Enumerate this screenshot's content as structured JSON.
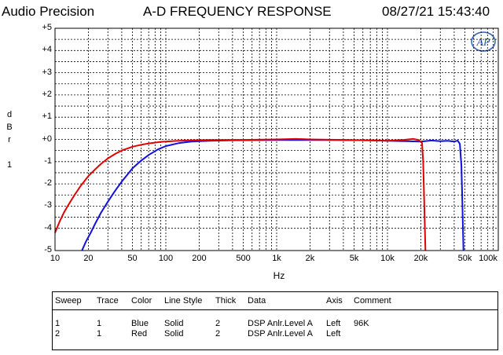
{
  "header": {
    "brand": "Audio Precision",
    "title": "A-D FREQUENCY RESPONSE",
    "timestamp": "08/27/21 15:43:40"
  },
  "logo": {
    "icon": "ap-logo-icon",
    "text": "AP"
  },
  "chart_data": {
    "type": "line",
    "title": "A-D FREQUENCY RESPONSE",
    "xlabel": "Hz",
    "ylabel": [
      "d",
      "B",
      "r",
      "",
      "1"
    ],
    "xscale": "log",
    "xlim": [
      10,
      100000
    ],
    "ylim": [
      -5,
      5
    ],
    "grid": true,
    "xticks": [
      {
        "v": 10,
        "label": "10"
      },
      {
        "v": 20,
        "label": "20"
      },
      {
        "v": 50,
        "label": "50"
      },
      {
        "v": 100,
        "label": "100"
      },
      {
        "v": 200,
        "label": "200"
      },
      {
        "v": 500,
        "label": "500"
      },
      {
        "v": 1000,
        "label": "1k"
      },
      {
        "v": 2000,
        "label": "2k"
      },
      {
        "v": 5000,
        "label": "5k"
      },
      {
        "v": 10000,
        "label": "10k"
      },
      {
        "v": 20000,
        "label": "20k"
      },
      {
        "v": 50000,
        "label": "50k"
      },
      {
        "v": 100000,
        "label": "100k"
      }
    ],
    "yticks": [
      {
        "v": 5,
        "label": "+5"
      },
      {
        "v": 4,
        "label": "+4"
      },
      {
        "v": 3,
        "label": "+3"
      },
      {
        "v": 2,
        "label": "+2"
      },
      {
        "v": 1,
        "label": "+1"
      },
      {
        "v": 0,
        "label": "+0"
      },
      {
        "v": -1,
        "label": "-1"
      },
      {
        "v": -2,
        "label": "-2"
      },
      {
        "v": -3,
        "label": "-3"
      },
      {
        "v": -4,
        "label": "-4"
      },
      {
        "v": -5,
        "label": "-5"
      }
    ],
    "series": [
      {
        "color": "#1010e0",
        "points": [
          [
            17.5,
            -5
          ],
          [
            19,
            -4.6
          ],
          [
            21,
            -4.2
          ],
          [
            23,
            -3.8
          ],
          [
            26,
            -3.3
          ],
          [
            30,
            -2.8
          ],
          [
            35,
            -2.3
          ],
          [
            40,
            -1.9
          ],
          [
            50,
            -1.3
          ],
          [
            60,
            -0.95
          ],
          [
            70,
            -0.7
          ],
          [
            85,
            -0.45
          ],
          [
            100,
            -0.3
          ],
          [
            130,
            -0.17
          ],
          [
            170,
            -0.1
          ],
          [
            250,
            -0.06
          ],
          [
            400,
            -0.04
          ],
          [
            1000,
            -0.03
          ],
          [
            3000,
            -0.03
          ],
          [
            7000,
            -0.04
          ],
          [
            10000,
            -0.06
          ],
          [
            15000,
            -0.08
          ],
          [
            20000,
            -0.1
          ],
          [
            25000,
            -0.05
          ],
          [
            30000,
            -0.08
          ],
          [
            35000,
            -0.06
          ],
          [
            40000,
            -0.1
          ],
          [
            43000,
            -0.05
          ],
          [
            45000,
            -0.2
          ],
          [
            46500,
            -1.2
          ],
          [
            47500,
            -3
          ],
          [
            48500,
            -5
          ]
        ]
      },
      {
        "color": "#e00000",
        "points": [
          [
            10,
            -4.2
          ],
          [
            11,
            -3.7
          ],
          [
            12,
            -3.3
          ],
          [
            13,
            -3.0
          ],
          [
            15,
            -2.5
          ],
          [
            17,
            -2.1
          ],
          [
            20,
            -1.65
          ],
          [
            23,
            -1.35
          ],
          [
            26,
            -1.1
          ],
          [
            30,
            -0.85
          ],
          [
            35,
            -0.65
          ],
          [
            40,
            -0.5
          ],
          [
            50,
            -0.33
          ],
          [
            60,
            -0.24
          ],
          [
            70,
            -0.18
          ],
          [
            90,
            -0.11
          ],
          [
            120,
            -0.07
          ],
          [
            170,
            -0.04
          ],
          [
            250,
            -0.03
          ],
          [
            500,
            -0.02
          ],
          [
            1000,
            0.0
          ],
          [
            1500,
            0.02
          ],
          [
            2000,
            0.0
          ],
          [
            4000,
            -0.02
          ],
          [
            8000,
            -0.05
          ],
          [
            10000,
            -0.06
          ],
          [
            14000,
            -0.02
          ],
          [
            17000,
            0.02
          ],
          [
            19000,
            -0.02
          ],
          [
            20500,
            -0.15
          ],
          [
            21000,
            -1.0
          ],
          [
            21500,
            -3
          ],
          [
            22000,
            -5
          ]
        ]
      }
    ]
  },
  "legend": {
    "headers": [
      "Sweep",
      "Trace",
      "Color",
      "Line Style",
      "Thick",
      "Data",
      "Axis",
      "Comment"
    ],
    "rows": [
      [
        "1",
        "1",
        "Blue",
        "Solid",
        "2",
        "DSP Anlr.Level A",
        "Left",
        "96K"
      ],
      [
        "2",
        "1",
        "Red",
        "Solid",
        "2",
        "DSP Anlr.Level A",
        "Left",
        ""
      ]
    ]
  }
}
